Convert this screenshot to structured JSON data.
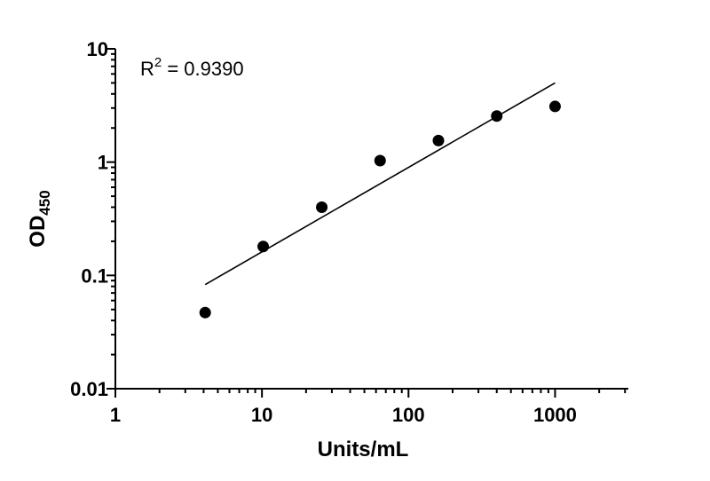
{
  "chart_data": {
    "type": "scatter",
    "title": "",
    "xlabel": "Units/mL",
    "ylabel_main": "OD",
    "ylabel_sub": "450",
    "x_scale": "log",
    "y_scale": "log",
    "xlim": [
      1,
      3162
    ],
    "ylim": [
      0.01,
      10
    ],
    "x_ticks": [
      1,
      10,
      100,
      1000
    ],
    "x_tick_labels": [
      "1",
      "10",
      "100",
      "1000"
    ],
    "y_ticks": [
      0.01,
      0.1,
      1,
      10
    ],
    "y_tick_labels": [
      "0.01",
      "0.1",
      "1",
      "10"
    ],
    "grid": false,
    "points": {
      "x": [
        4.1,
        10.2,
        25.6,
        64,
        160,
        400,
        1000
      ],
      "y": [
        0.047,
        0.18,
        0.4,
        1.03,
        1.55,
        2.55,
        3.1
      ]
    },
    "fit_line": {
      "x": [
        4.1,
        1000
      ],
      "y": [
        0.083,
        5.0
      ]
    },
    "annotation": {
      "base": "R",
      "sup": "2",
      "text": " = 0.9390"
    },
    "colors": {
      "points": "#000000",
      "line": "#000000",
      "axes": "#000000"
    }
  }
}
